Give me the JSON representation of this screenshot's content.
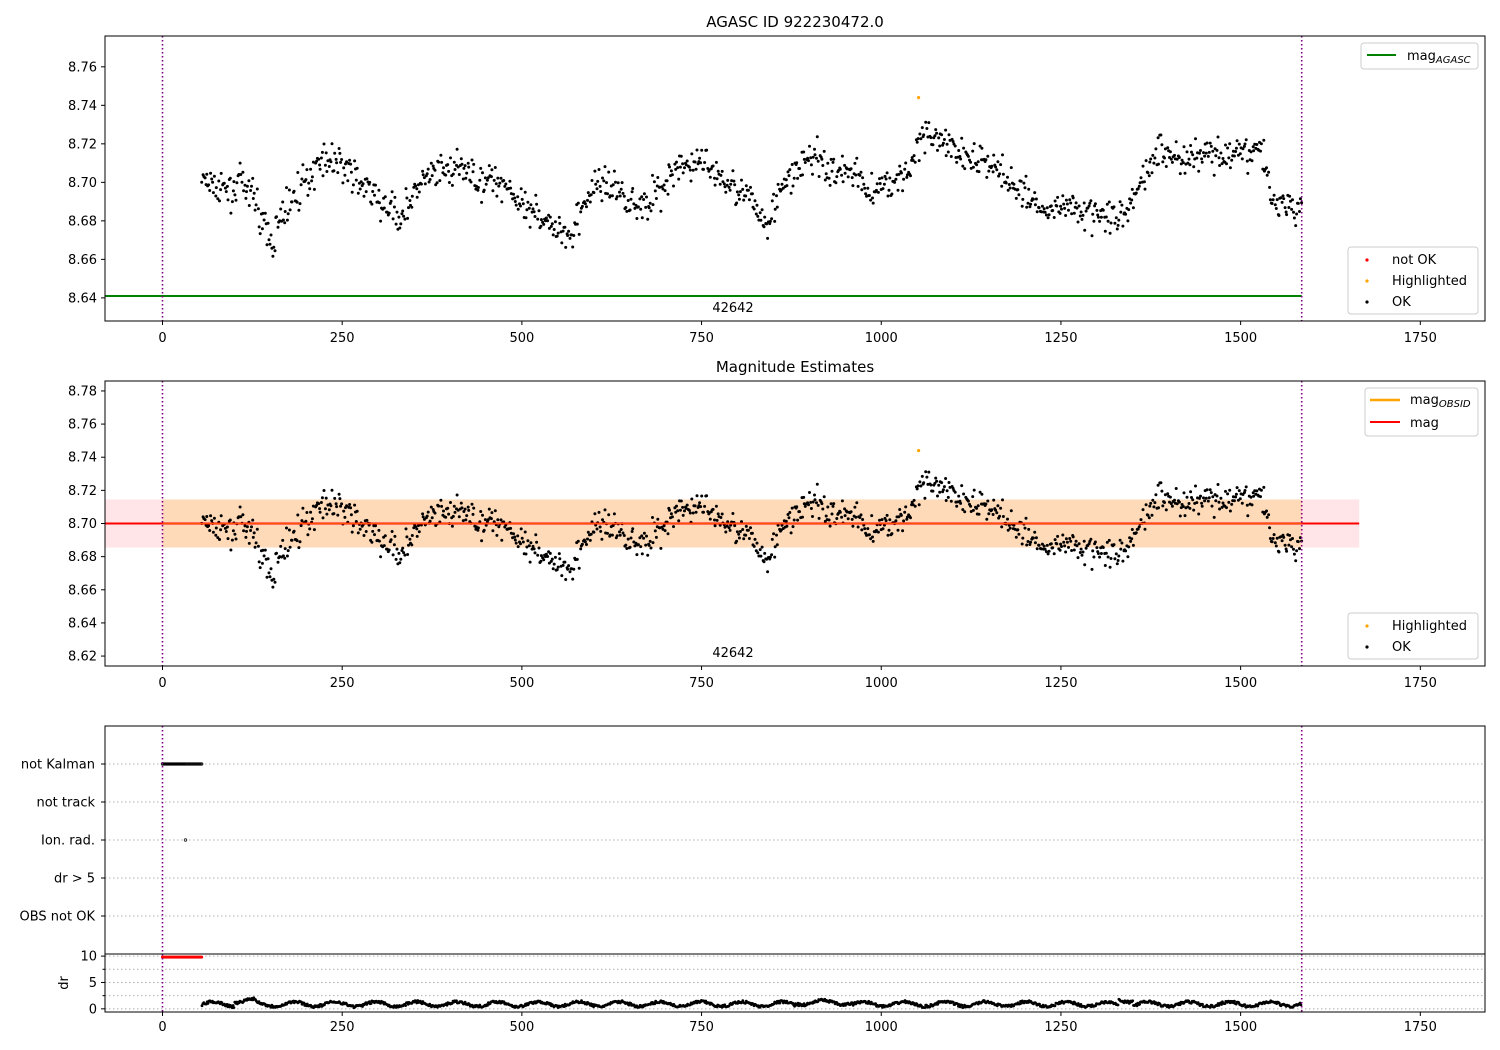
{
  "colors": {
    "ok": "#000000",
    "highlighted": "#ffa500",
    "not_ok": "#ff0000",
    "mag_agasc": "#008000",
    "mag_obsid": "#ffa500",
    "mag": "#ff0000",
    "obs_boundary": "#800080",
    "band_std": "#ffdab9",
    "band_outer": "#ffe4e8",
    "grid": "#b0b0b0"
  },
  "chart_data": [
    {
      "type": "scatter",
      "title": "AGASC ID 922230472.0",
      "xlim": [
        -80,
        1840
      ],
      "ylim": [
        8.628,
        8.776
      ],
      "x_ticks": [
        0,
        250,
        500,
        750,
        1000,
        1250,
        1500,
        1750
      ],
      "y_ticks": [
        8.64,
        8.66,
        8.68,
        8.7,
        8.72,
        8.74,
        8.76
      ],
      "y_tick_labels": [
        "8.64",
        "8.66",
        "8.68",
        "8.70",
        "8.72",
        "8.74",
        "8.76"
      ],
      "vlines": [
        0,
        1585
      ],
      "obsid_label": "42642",
      "mag_agasc": 8.641,
      "mag_agasc_label": "mag",
      "mag_agasc_sub": "AGASC",
      "legend_points": [
        "not OK",
        "Highlighted",
        "OK"
      ],
      "highlighted_point": {
        "x": 1052,
        "y": 8.744
      },
      "series_description": "OK points, x from 55 to 1585, y between 8.659 and 8.740"
    },
    {
      "type": "scatter",
      "title": "Magnitude Estimates",
      "xlim": [
        -80,
        1840
      ],
      "ylim": [
        8.614,
        8.786
      ],
      "x_ticks": [
        0,
        250,
        500,
        750,
        1000,
        1250,
        1500,
        1750
      ],
      "y_ticks": [
        8.62,
        8.64,
        8.66,
        8.68,
        8.7,
        8.72,
        8.74,
        8.76,
        8.78
      ],
      "y_tick_labels": [
        "8.62",
        "8.64",
        "8.66",
        "8.68",
        "8.70",
        "8.72",
        "8.74",
        "8.76",
        "8.78"
      ],
      "vlines": [
        0,
        1585
      ],
      "obsid_label": "42642",
      "mag": 8.7,
      "mag_std": 0.0145,
      "mag_obsid": 8.7,
      "mag_label": "mag",
      "mag_obsid_label": "mag",
      "mag_obsid_sub": "OBSID",
      "legend_points": [
        "Highlighted",
        "OK"
      ],
      "highlighted_point": {
        "x": 1052,
        "y": 8.744
      }
    },
    {
      "type": "scatter",
      "title": "",
      "xlim": [
        -80,
        1840
      ],
      "x_ticks": [
        0,
        250,
        500,
        750,
        1000,
        1250,
        1500,
        1750
      ],
      "flag_categories": [
        "not Kalman",
        "not track",
        "Ion. rad.",
        "dr > 5",
        "OBS not OK"
      ],
      "not_kalman_x": [
        0,
        55
      ],
      "ion_rad_x": 32,
      "vlines": [
        0,
        1585
      ]
    },
    {
      "type": "scatter",
      "title": "",
      "ylabel": "dr",
      "xlim": [
        -80,
        1840
      ],
      "ylim": [
        -0.6,
        10.4
      ],
      "x_ticks": [
        0,
        250,
        500,
        750,
        1000,
        1250,
        1500,
        1750
      ],
      "y_ticks": [
        0,
        5,
        10
      ],
      "y_tick_labels": [
        "0",
        "5",
        "10"
      ],
      "not_ok_dr": 9.8,
      "not_ok_x": [
        0,
        55
      ],
      "vlines": [
        0,
        1585
      ]
    }
  ]
}
